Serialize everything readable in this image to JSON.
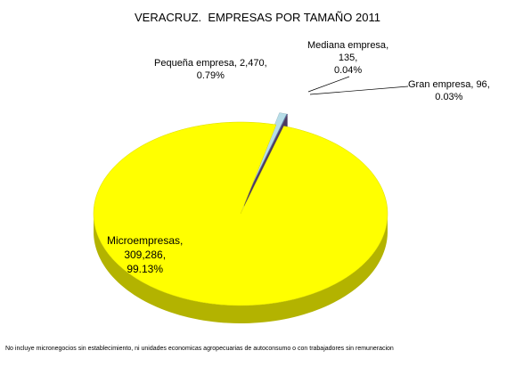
{
  "chart_data": {
    "type": "pie3d",
    "title": "VERACRUZ.  EMPRESAS POR TAMAÑO 2011",
    "categories": [
      "Microempresas",
      "Pequeña empresa",
      "Mediana empresa",
      "Gran empresa"
    ],
    "values": [
      309286,
      2470,
      135,
      96
    ],
    "value_labels": [
      "309,286",
      "2,470",
      "135",
      "96"
    ],
    "percents": [
      99.13,
      0.79,
      0.04,
      0.03
    ],
    "percent_labels": [
      "99.13%",
      "0.79%",
      "0.04%",
      "0.03%"
    ],
    "colors": [
      "#ffff00",
      "#b7dde8",
      "#4bacc6",
      "#7d60a0"
    ],
    "footnote": "No incluye micronegocios sin establecimiento, ni unidades economicas agropecuarias de autoconsumo o con trabajadores sin remuneracion"
  }
}
